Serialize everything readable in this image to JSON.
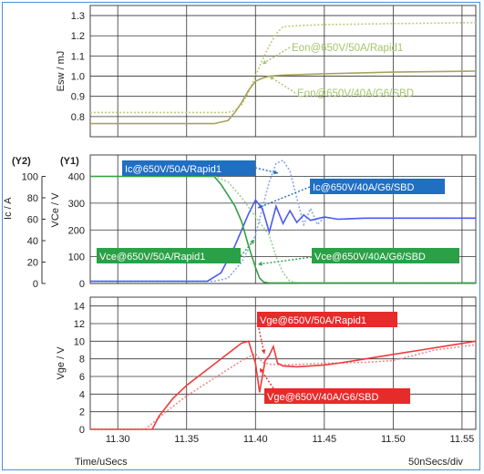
{
  "chart_data": [
    {
      "type": "line",
      "ylabel": "Esw / mJ",
      "ylim": [
        0.7,
        1.35
      ],
      "yticks": [
        0.8,
        0.9,
        1.0,
        1.1,
        1.2,
        1.3
      ],
      "xlim": [
        11.28,
        11.56
      ],
      "series": [
        {
          "name": "Eon@650V/50A/Rapid1",
          "style": "dotted",
          "color": "#b8cf72",
          "x": [
            11.28,
            11.38,
            11.385,
            11.39,
            11.395,
            11.4,
            11.405,
            11.41,
            11.415,
            11.42,
            11.43,
            11.45,
            11.5,
            11.56
          ],
          "y": [
            0.82,
            0.82,
            0.83,
            0.86,
            0.92,
            1.0,
            1.08,
            1.15,
            1.21,
            1.245,
            1.25,
            1.255,
            1.26,
            1.265
          ]
        },
        {
          "name": "Eon@650V/40A/G6/SBD",
          "style": "solid",
          "color": "#a7a35a",
          "x": [
            11.28,
            11.37,
            11.38,
            11.385,
            11.39,
            11.395,
            11.4,
            11.405,
            11.41,
            11.42,
            11.45,
            11.5,
            11.56
          ],
          "y": [
            0.765,
            0.765,
            0.78,
            0.82,
            0.87,
            0.93,
            0.975,
            0.99,
            1.0,
            1.005,
            1.012,
            1.02,
            1.025
          ]
        }
      ],
      "annotations": [
        {
          "text": "Eon@650V/50A/Rapid1",
          "color": "#a5c46a"
        },
        {
          "text": "Eon@650V/40A/G6/SBD",
          "color": "#a5c46a"
        }
      ]
    },
    {
      "type": "line",
      "y1_label": "VCe / V",
      "y1_tag": "(Y1)",
      "y1lim": [
        0,
        480
      ],
      "y1ticks": [
        0,
        100,
        200,
        300,
        400
      ],
      "y2_label": "Ic / A",
      "y2_tag": "(Y2)",
      "y2lim": [
        0,
        120
      ],
      "y2ticks": [
        0,
        20,
        40,
        60,
        80,
        100
      ],
      "xlim": [
        11.28,
        11.56
      ],
      "series": [
        {
          "name": "Ic@650V/50A/Rapid1",
          "axis": "Y2",
          "style": "dotted",
          "color": "#8aa6ee",
          "x": [
            11.28,
            11.37,
            11.38,
            11.39,
            11.4,
            11.405,
            11.41,
            11.415,
            11.42,
            11.425,
            11.43,
            11.435,
            11.44,
            11.445,
            11.45,
            11.46,
            11.48,
            11.5,
            11.56
          ],
          "y": [
            2,
            2,
            5,
            20,
            45,
            70,
            95,
            112,
            115,
            105,
            80,
            55,
            70,
            55,
            62,
            60,
            61,
            61,
            61
          ]
        },
        {
          "name": "Ic@650V/40A/G6/SBD",
          "axis": "Y2",
          "style": "solid",
          "color": "#4a5cec",
          "x": [
            11.28,
            11.365,
            11.375,
            11.385,
            11.395,
            11.4,
            11.405,
            11.41,
            11.415,
            11.42,
            11.425,
            11.43,
            11.435,
            11.44,
            11.45,
            11.46,
            11.48,
            11.5,
            11.56
          ],
          "y": [
            2,
            2,
            10,
            35,
            65,
            78,
            70,
            48,
            72,
            56,
            68,
            57,
            64,
            59,
            62,
            60,
            61,
            61,
            61
          ]
        },
        {
          "name": "Vce@650V/50A/Rapid1",
          "axis": "Y1",
          "style": "dotted",
          "color": "#9ccf9c",
          "x": [
            11.28,
            11.37,
            11.38,
            11.39,
            11.4,
            11.41,
            11.415,
            11.42,
            11.425,
            11.43,
            11.56
          ],
          "y": [
            400,
            400,
            380,
            320,
            250,
            180,
            100,
            40,
            8,
            2,
            2
          ]
        },
        {
          "name": "Vce@650V/40A/G6/SBD",
          "axis": "Y1",
          "style": "solid",
          "color": "#34a043",
          "x": [
            11.28,
            11.37,
            11.375,
            11.38,
            11.385,
            11.39,
            11.395,
            11.4,
            11.403,
            11.406,
            11.41,
            11.56
          ],
          "y": [
            400,
            400,
            370,
            330,
            290,
            230,
            140,
            60,
            20,
            5,
            2,
            2
          ]
        }
      ],
      "annotations": [
        {
          "text": "Ic@650V/50A/Rapid1",
          "color": "#1f6fc3"
        },
        {
          "text": "Ic@650V/40A/G6/SBD",
          "color": "#1f6fc3"
        },
        {
          "text": "Vce@650V/50A/Rapid1",
          "color": "#2aa147"
        },
        {
          "text": "Vce@650V/40A/G6/SBD",
          "color": "#2aa147"
        }
      ]
    },
    {
      "type": "line",
      "ylabel": "Vge / V",
      "ylim": [
        0,
        15
      ],
      "yticks": [
        0,
        2,
        4,
        6,
        8,
        10,
        12,
        14
      ],
      "xlim": [
        11.28,
        11.56
      ],
      "xticks": [
        11.3,
        11.35,
        11.4,
        11.45,
        11.5,
        11.55
      ],
      "xlabel": "Time/uSecs",
      "scale_label": "50nSecs/div",
      "series": [
        {
          "name": "Vge@650V/50A/Rapid1",
          "style": "dotted",
          "color": "#f08a8a",
          "x": [
            11.28,
            11.32,
            11.335,
            11.35,
            11.37,
            11.39,
            11.4,
            11.405,
            11.41,
            11.42,
            11.45,
            11.48,
            11.5,
            11.53,
            11.56
          ],
          "y": [
            0,
            0,
            2,
            3.8,
            5.8,
            7.8,
            8.6,
            7.6,
            7.4,
            7.3,
            7.5,
            7.6,
            7.8,
            9.0,
            9.6
          ]
        },
        {
          "name": "Vge@650V/40A/G6/SBD",
          "style": "solid",
          "color": "#ee3b3b",
          "x": [
            11.28,
            11.325,
            11.33,
            11.34,
            11.35,
            11.36,
            11.37,
            11.38,
            11.39,
            11.395,
            11.4,
            11.403,
            11.407,
            11.41,
            11.413,
            11.416,
            11.42,
            11.43,
            11.44,
            11.45,
            11.46,
            11.48,
            11.5,
            11.52,
            11.54,
            11.56
          ],
          "y": [
            0,
            0,
            1.5,
            3.5,
            5,
            6.2,
            7.4,
            8.6,
            9.8,
            10,
            7.5,
            4.2,
            7.8,
            8.4,
            9.4,
            7.5,
            7.2,
            7.1,
            7.2,
            7.3,
            7.5,
            8,
            8.5,
            9,
            9.5,
            10
          ]
        }
      ],
      "annotations": [
        {
          "text": "Vge@650V/50A/Rapid1",
          "color": "#e62b2b"
        },
        {
          "text": "Vge@650V/40A/G6/SBD",
          "color": "#e62b2b"
        }
      ]
    }
  ]
}
